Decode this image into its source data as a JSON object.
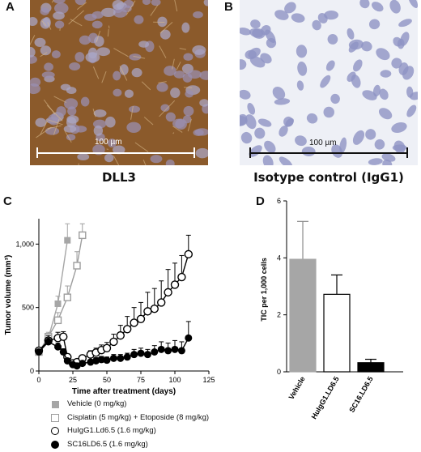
{
  "panels": {
    "a": {
      "letter": "A",
      "caption": "DLL3",
      "scale_bar_label": "100 µm"
    },
    "b": {
      "letter": "B",
      "caption": "Isotype control (IgG1)",
      "scale_bar_label": "100 µm"
    },
    "c": {
      "letter": "C"
    },
    "d": {
      "letter": "D"
    }
  },
  "colors": {
    "vehicle_gray": "#a6a6a6",
    "cisplatin_gray": "#9e9e9e",
    "black": "#000000",
    "ihc_brown": "#8b5a2b",
    "nuclei_blue": "#8f93c4"
  },
  "chart_data": [
    {
      "type": "line",
      "panel": "C",
      "xlabel": "Time after treatment (days)",
      "ylabel": "Tumor volume (mm³)",
      "xlim": [
        0,
        125
      ],
      "ylim": [
        0,
        1200
      ],
      "x_ticks": [
        "0",
        "25",
        "50",
        "75",
        "100",
        "125"
      ],
      "y_ticks": [
        "0",
        "500",
        "1,000"
      ],
      "legend_position": "bottom",
      "series": [
        {
          "name": "Vehicle (0 mg/kg)",
          "marker": "filled-square",
          "color": "#a6a6a6",
          "x": [
            0,
            7,
            14,
            21
          ],
          "y": [
            150,
            260,
            530,
            1030
          ],
          "err": [
            20,
            30,
            60,
            130
          ]
        },
        {
          "name": "Cisplatin (5 mg/kg) + Etoposide (8 mg/kg)",
          "marker": "open-square",
          "color": "#9e9e9e",
          "x": [
            0,
            7,
            14,
            21,
            28,
            32
          ],
          "y": [
            150,
            270,
            400,
            580,
            830,
            1070
          ],
          "err": [
            20,
            35,
            60,
            90,
            110,
            90
          ]
        },
        {
          "name": "HuIgG1.Ld6.5 (1.6 mg/kg)",
          "marker": "open-circle",
          "color": "#000000",
          "x": [
            0,
            7,
            14,
            18,
            21,
            25,
            28,
            32,
            38,
            42,
            46,
            50,
            55,
            60,
            65,
            70,
            75,
            80,
            85,
            90,
            95,
            100,
            105,
            110
          ],
          "y": [
            160,
            240,
            260,
            270,
            110,
            60,
            70,
            100,
            130,
            145,
            165,
            180,
            230,
            280,
            330,
            380,
            410,
            470,
            490,
            540,
            620,
            680,
            740,
            920
          ],
          "err": [
            25,
            40,
            45,
            40,
            25,
            20,
            20,
            25,
            30,
            35,
            40,
            45,
            60,
            80,
            100,
            120,
            130,
            150,
            160,
            170,
            180,
            170,
            170,
            150
          ]
        },
        {
          "name": "SC16LD6.5 (1.6 mg/kg)",
          "marker": "filled-circle",
          "color": "#000000",
          "x": [
            0,
            7,
            14,
            18,
            21,
            25,
            28,
            32,
            38,
            42,
            46,
            50,
            55,
            60,
            65,
            70,
            75,
            80,
            85,
            90,
            95,
            100,
            105,
            110
          ],
          "y": [
            150,
            230,
            190,
            150,
            80,
            50,
            40,
            60,
            70,
            80,
            90,
            85,
            100,
            100,
            110,
            130,
            140,
            130,
            150,
            170,
            160,
            170,
            160,
            260
          ],
          "err": [
            20,
            30,
            30,
            25,
            20,
            15,
            15,
            20,
            20,
            25,
            25,
            25,
            30,
            30,
            30,
            40,
            40,
            40,
            50,
            60,
            60,
            70,
            70,
            130
          ]
        }
      ]
    },
    {
      "type": "bar",
      "panel": "D",
      "ylabel": "TIC per 1,000 cells",
      "ylim": [
        0,
        6
      ],
      "y_ticks": [
        "0",
        "2",
        "4",
        "6"
      ],
      "categories": [
        "Vehicle",
        "HuIgG1.LD6.5",
        "SC16.LD6.5"
      ],
      "values": [
        3.95,
        2.72,
        0.32
      ],
      "errors": [
        1.33,
        0.68,
        0.12
      ],
      "bar_colors": [
        "#a6a6a6",
        "#ffffff",
        "#000000"
      ]
    }
  ]
}
